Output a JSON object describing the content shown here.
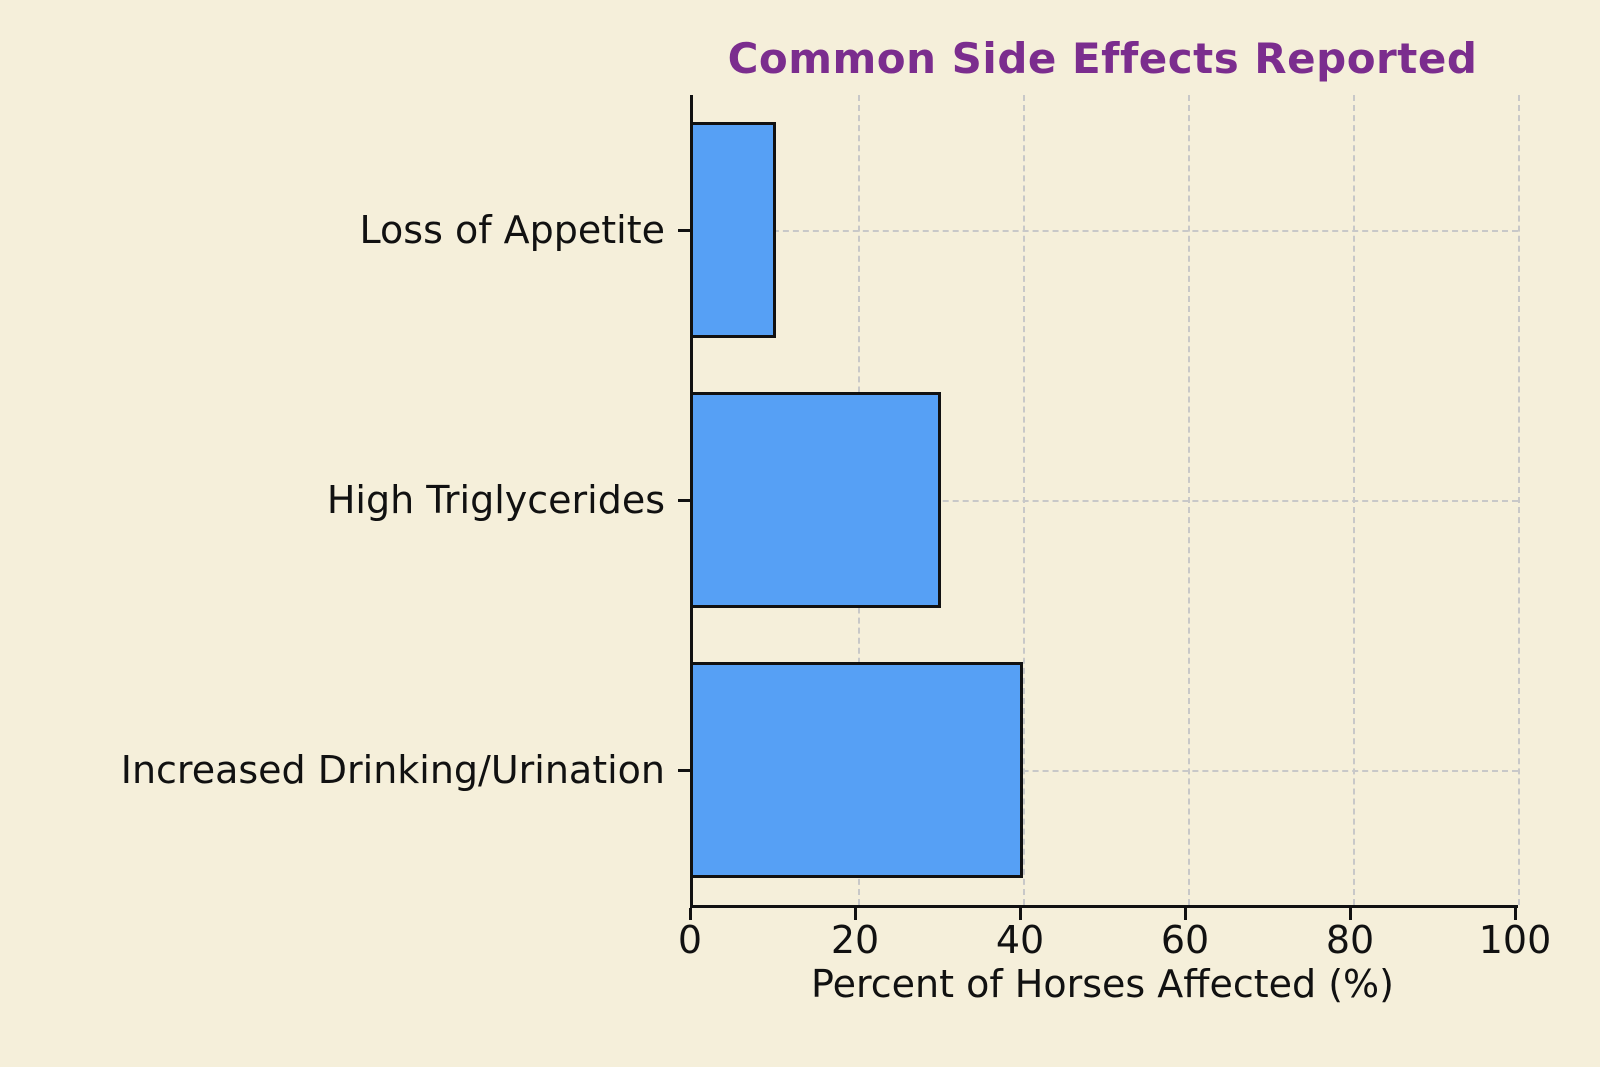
{
  "title": "Common Side Effects Reported",
  "colors": {
    "background": "#f5efda",
    "bar_fill": "#56a0f5",
    "bar_edge": "#111111",
    "title_text": "#7b2d8e",
    "grid": "#c8c8c8",
    "axis": "#111111",
    "text": "#111111"
  },
  "chart_data": {
    "type": "bar",
    "orientation": "horizontal",
    "title": "Common Side Effects Reported",
    "categories": [
      "Loss of Appetite",
      "High Triglycerides",
      "Increased Drinking/Urination"
    ],
    "values": [
      10,
      30,
      40
    ],
    "xlabel": "Percent of Horses Affected (%)",
    "ylabel": "",
    "xlim": [
      0,
      100
    ],
    "xticks": [
      0,
      20,
      40,
      60,
      80,
      100
    ],
    "grid": true,
    "grid_style": "dashed",
    "legend": false,
    "bar_height_fraction": 0.8
  }
}
